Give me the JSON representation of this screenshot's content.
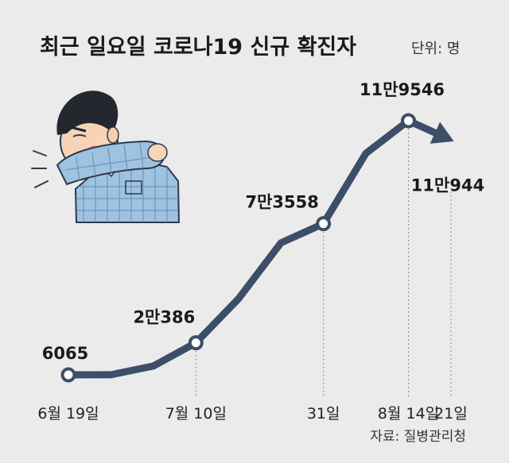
{
  "header": {
    "title": "최근 일요일 코로나19 신규 확진자",
    "unit": "단위: 명"
  },
  "source": "자료: 질병관리청",
  "colors": {
    "line": "#3c4e68",
    "background": "#ebebeb",
    "marker_fill": "#ffffff",
    "guide": "#888888"
  },
  "illustration": "person-coughing-into-elbow",
  "chart_data": {
    "type": "line",
    "title": "최근 일요일 코로나19 신규 확진자",
    "unit": "단위: 명",
    "ticks": [
      "6월 19일",
      "7월 10일",
      "31일",
      "8월 14일",
      "21일"
    ],
    "series": [
      {
        "points": [
          {
            "date": "2022-06-19",
            "value": 6065,
            "label": "6065"
          },
          {
            "date": "2022-06-26",
            "value": 6100
          },
          {
            "date": "2022-07-03",
            "value": 10000
          },
          {
            "date": "2022-07-10",
            "value": 20386,
            "label": "2만386"
          },
          {
            "date": "2022-07-17",
            "value": 40000
          },
          {
            "date": "2022-07-24",
            "value": 65000
          },
          {
            "date": "2022-07-31",
            "value": 73558,
            "label": "7만3558"
          },
          {
            "date": "2022-08-07",
            "value": 105000
          },
          {
            "date": "2022-08-14",
            "value": 119546,
            "label": "11만9546"
          },
          {
            "date": "2022-08-21",
            "value": 110944,
            "label": "11만944"
          }
        ]
      }
    ]
  }
}
